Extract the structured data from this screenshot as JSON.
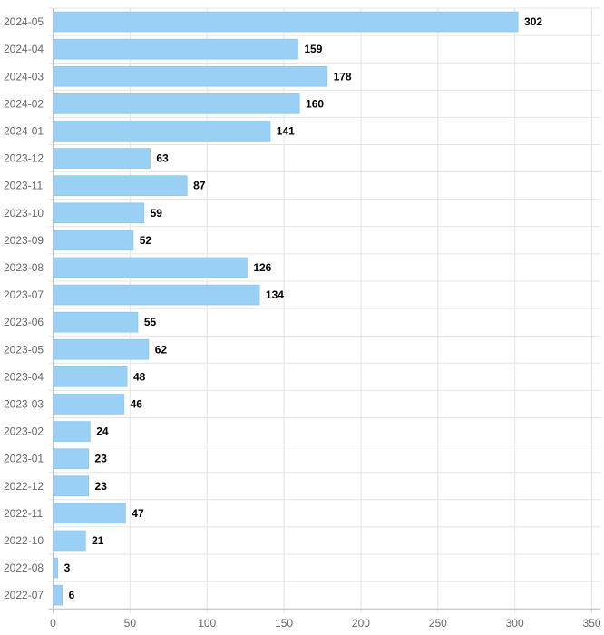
{
  "chart_data": {
    "type": "bar",
    "orientation": "horizontal",
    "categories": [
      "2024-05",
      "2024-04",
      "2024-03",
      "2024-02",
      "2024-01",
      "2023-12",
      "2023-11",
      "2023-10",
      "2023-09",
      "2023-08",
      "2023-07",
      "2023-06",
      "2023-05",
      "2023-04",
      "2023-03",
      "2023-02",
      "2023-01",
      "2022-12",
      "2022-11",
      "2022-10",
      "2022-08",
      "2022-07"
    ],
    "values": [
      302,
      159,
      178,
      160,
      141,
      63,
      87,
      59,
      52,
      126,
      134,
      55,
      62,
      48,
      46,
      24,
      23,
      23,
      47,
      21,
      3,
      6
    ],
    "xlim": [
      0,
      350
    ],
    "x_ticks": [
      0,
      50,
      100,
      150,
      200,
      250,
      300,
      350
    ],
    "grid": true,
    "legend": "none",
    "show_value_labels": true,
    "colors": {
      "bar_fill": "#9bd0f5",
      "bar_stroke": "#8ec9f3",
      "grid": "#e4e4e4",
      "axis": "#bdbdbd",
      "tick_text": "#666666",
      "value_text": "#000000"
    }
  }
}
